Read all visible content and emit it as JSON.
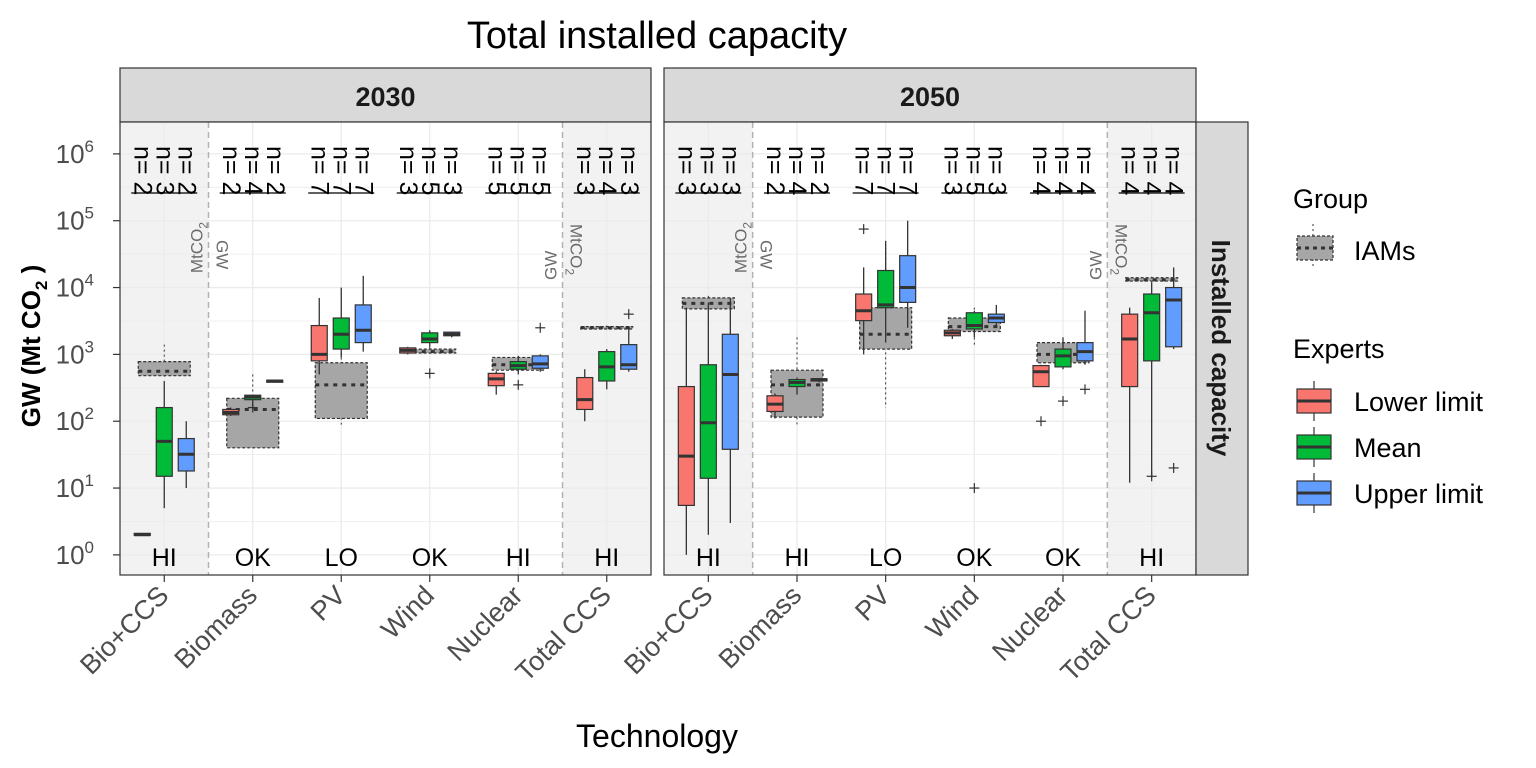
{
  "chart_data": {
    "type": "boxplot",
    "title": "Total installed capacity",
    "xlabel": "Technology",
    "ylabel_main": "GW (Mt CO",
    "ylabel_sub": "2",
    "ylabel_end": " )",
    "y_scale": "log10",
    "ylim": [
      0.5,
      3000000
    ],
    "y_ticks": [
      {
        "value": 1,
        "base": "10",
        "exp": "0"
      },
      {
        "value": 10,
        "base": "10",
        "exp": "1"
      },
      {
        "value": 100,
        "base": "10",
        "exp": "2"
      },
      {
        "value": 1000,
        "base": "10",
        "exp": "3"
      },
      {
        "value": 10000,
        "base": "10",
        "exp": "4"
      },
      {
        "value": 100000,
        "base": "10",
        "exp": "5"
      },
      {
        "value": 1000000,
        "base": "10",
        "exp": "6"
      }
    ],
    "categories": [
      "Bio+CCS",
      "Biomass",
      "PV",
      "Wind",
      "Nuclear",
      "Total CCS"
    ],
    "strip_right": "Installed capacity",
    "colors": {
      "Lower limit": "#f8766d",
      "Mean": "#00ba38",
      "Upper limit": "#619cff",
      "IAMs": "#a6a6a6",
      "shade": "#f2f2f2",
      "strip": "#d9d9d9",
      "grid": "#ebebeb"
    },
    "legend": {
      "group_title": "Group",
      "group_items": [
        "IAMs"
      ],
      "experts_title": "Experts",
      "experts_items": [
        "Lower limit",
        "Mean",
        "Upper limit"
      ]
    },
    "unit_labels": {
      "gw": "GW",
      "mtco2_main": "MtCO",
      "mtco2_sub": "2"
    },
    "panels": [
      {
        "name": "2030",
        "techs": [
          {
            "category": "Bio+CCS",
            "rating": "HI",
            "shaded": true,
            "n": [
              "n= 2",
              "n= 3",
              "n= 2"
            ],
            "iam": {
              "min": 450,
              "q1": 480,
              "median": 560,
              "q3": 780,
              "max": 1400
            },
            "boxes": [
              {
                "series": "Lower limit",
                "min": 2,
                "q1": 2,
                "median": 2,
                "q3": 2.1,
                "max": 2.1,
                "outliers": []
              },
              {
                "series": "Mean",
                "min": 5,
                "q1": 15,
                "median": 50,
                "q3": 160,
                "max": 400,
                "outliers": []
              },
              {
                "series": "Upper limit",
                "min": 10,
                "q1": 18,
                "median": 32,
                "q3": 55,
                "max": 100,
                "outliers": []
              }
            ]
          },
          {
            "category": "Biomass",
            "rating": "OK",
            "shaded": false,
            "n": [
              "n= 2",
              "n= 4",
              "n= 2"
            ],
            "iam": {
              "min": 40,
              "q1": 40,
              "median": 150,
              "q3": 220,
              "max": 500
            },
            "boxes": [
              {
                "series": "Lower limit",
                "min": 120,
                "q1": 125,
                "median": 135,
                "q3": 150,
                "max": 160,
                "outliers": []
              },
              {
                "series": "Mean",
                "min": 150,
                "q1": 210,
                "median": 230,
                "q3": 245,
                "max": 250,
                "outliers": [
                  160
                ]
              },
              {
                "series": "Upper limit",
                "min": 380,
                "q1": 385,
                "median": 400,
                "q3": 410,
                "max": 420,
                "outliers": []
              }
            ]
          },
          {
            "category": "PV",
            "rating": "LO",
            "shaded": false,
            "n": [
              "n= 7",
              "n= 7",
              "n= 7"
            ],
            "iam": {
              "min": 85,
              "q1": 110,
              "median": 350,
              "q3": 750,
              "max": 1500
            },
            "boxes": [
              {
                "series": "Lower limit",
                "min": 500,
                "q1": 800,
                "median": 1000,
                "q3": 2700,
                "max": 7000,
                "outliers": []
              },
              {
                "series": "Mean",
                "min": 900,
                "q1": 1200,
                "median": 2000,
                "q3": 3500,
                "max": 10000,
                "outliers": []
              },
              {
                "series": "Upper limit",
                "min": 1100,
                "q1": 1500,
                "median": 2300,
                "q3": 5500,
                "max": 15000,
                "outliers": []
              }
            ]
          },
          {
            "category": "Wind",
            "rating": "OK",
            "shaded": false,
            "n": [
              "n= 3",
              "n= 5",
              "n= 3"
            ],
            "iam": {
              "min": 1000,
              "q1": 1050,
              "median": 1100,
              "q3": 1200,
              "max": 1300
            },
            "boxes": [
              {
                "series": "Lower limit",
                "min": 1000,
                "q1": 1050,
                "median": 1150,
                "q3": 1250,
                "max": 1300,
                "outliers": []
              },
              {
                "series": "Mean",
                "min": 1300,
                "q1": 1500,
                "median": 1700,
                "q3": 2100,
                "max": 2300,
                "outliers": [
                  520
                ]
              },
              {
                "series": "Upper limit",
                "min": 1800,
                "q1": 1900,
                "median": 2000,
                "q3": 2150,
                "max": 2200,
                "outliers": []
              }
            ]
          },
          {
            "category": "Nuclear",
            "rating": "HI",
            "shaded": false,
            "n": [
              "n= 5",
              "n= 5",
              "n= 5"
            ],
            "iam": {
              "min": 550,
              "q1": 580,
              "median": 700,
              "q3": 900,
              "max": 950
            },
            "boxes": [
              {
                "series": "Lower limit",
                "min": 250,
                "q1": 340,
                "median": 430,
                "q3": 520,
                "max": 560,
                "outliers": []
              },
              {
                "series": "Mean",
                "min": 500,
                "q1": 600,
                "median": 680,
                "q3": 780,
                "max": 950,
                "outliers": [
                  350
                ]
              },
              {
                "series": "Upper limit",
                "min": 550,
                "q1": 620,
                "median": 720,
                "q3": 950,
                "max": 1000,
                "outliers": [
                  2500
                ]
              }
            ]
          },
          {
            "category": "Total CCS",
            "rating": "HI",
            "shaded": true,
            "n": [
              "n= 3",
              "n= 4",
              "n= 3"
            ],
            "iam": {
              "min": 2400,
              "q1": 2400,
              "median": 2500,
              "q3": 2600,
              "max": 2700
            },
            "boxes": [
              {
                "series": "Lower limit",
                "min": 100,
                "q1": 150,
                "median": 210,
                "q3": 450,
                "max": 600,
                "outliers": []
              },
              {
                "series": "Mean",
                "min": 300,
                "q1": 400,
                "median": 650,
                "q3": 1100,
                "max": 1200,
                "outliers": []
              },
              {
                "series": "Upper limit",
                "min": 550,
                "q1": 600,
                "median": 700,
                "q3": 1400,
                "max": 2400,
                "outliers": [
                  4000
                ]
              }
            ]
          }
        ]
      },
      {
        "name": "2050",
        "techs": [
          {
            "category": "Bio+CCS",
            "rating": "HI",
            "shaded": true,
            "n": [
              "n= 3",
              "n= 3",
              "n= 3"
            ],
            "iam": {
              "min": 4500,
              "q1": 4800,
              "median": 5800,
              "q3": 7000,
              "max": 7500
            },
            "boxes": [
              {
                "series": "Lower limit",
                "min": 1,
                "q1": 5.5,
                "median": 30,
                "q3": 330,
                "max": 5000,
                "outliers": []
              },
              {
                "series": "Mean",
                "min": 2,
                "q1": 14,
                "median": 95,
                "q3": 700,
                "max": 6000,
                "outliers": []
              },
              {
                "series": "Upper limit",
                "min": 3,
                "q1": 38,
                "median": 500,
                "q3": 2000,
                "max": 7000,
                "outliers": []
              }
            ]
          },
          {
            "category": "Biomass",
            "rating": "HI",
            "shaded": false,
            "n": [
              "n= 2",
              "n= 4",
              "n= 2"
            ],
            "iam": {
              "min": 85,
              "q1": 115,
              "median": 350,
              "q3": 580,
              "max": 1800
            },
            "boxes": [
              {
                "series": "Lower limit",
                "min": 110,
                "q1": 140,
                "median": 180,
                "q3": 240,
                "max": 260,
                "outliers": []
              },
              {
                "series": "Mean",
                "min": 250,
                "q1": 330,
                "median": 380,
                "q3": 420,
                "max": 450,
                "outliers": []
              },
              {
                "series": "Upper limit",
                "min": 380,
                "q1": 400,
                "median": 420,
                "q3": 430,
                "max": 440,
                "outliers": []
              }
            ]
          },
          {
            "category": "PV",
            "rating": "LO",
            "shaded": false,
            "n": [
              "n= 7",
              "n= 7",
              "n= 7"
            ],
            "iam": {
              "min": 160,
              "q1": 1200,
              "median": 2000,
              "q3": 5000,
              "max": 40000
            },
            "boxes": [
              {
                "series": "Lower limit",
                "min": 1000,
                "q1": 3200,
                "median": 4500,
                "q3": 8000,
                "max": 20000,
                "outliers": [
                  75000
                ]
              },
              {
                "series": "Mean",
                "min": 1500,
                "q1": 5000,
                "median": 5500,
                "q3": 18000,
                "max": 50000,
                "outliers": []
              },
              {
                "series": "Upper limit",
                "min": 2500,
                "q1": 6000,
                "median": 10000,
                "q3": 30000,
                "max": 100000,
                "outliers": []
              }
            ]
          },
          {
            "category": "Wind",
            "rating": "OK",
            "shaded": false,
            "n": [
              "n= 3",
              "n= 5",
              "n= 3"
            ],
            "iam": {
              "min": 1400,
              "q1": 2200,
              "median": 2600,
              "q3": 3500,
              "max": 5000
            },
            "boxes": [
              {
                "series": "Lower limit",
                "min": 1700,
                "q1": 1900,
                "median": 2100,
                "q3": 2300,
                "max": 2400,
                "outliers": []
              },
              {
                "series": "Mean",
                "min": 1800,
                "q1": 2400,
                "median": 2700,
                "q3": 4200,
                "max": 4500,
                "outliers": [
                  10
                ]
              },
              {
                "series": "Upper limit",
                "min": 2500,
                "q1": 3000,
                "median": 3500,
                "q3": 4000,
                "max": 5500,
                "outliers": []
              }
            ]
          },
          {
            "category": "Nuclear",
            "rating": "OK",
            "shaded": false,
            "n": [
              "n= 4",
              "n= 4",
              "n= 4"
            ],
            "iam": {
              "min": 700,
              "q1": 750,
              "median": 1000,
              "q3": 1500,
              "max": 1600
            },
            "boxes": [
              {
                "series": "Lower limit",
                "min": 330,
                "q1": 330,
                "median": 550,
                "q3": 680,
                "max": 700,
                "outliers": [
                  100
                ]
              },
              {
                "series": "Mean",
                "min": 600,
                "q1": 650,
                "median": 950,
                "q3": 1200,
                "max": 1800,
                "outliers": [
                  200
                ]
              },
              {
                "series": "Upper limit",
                "min": 700,
                "q1": 800,
                "median": 1100,
                "q3": 1500,
                "max": 4500,
                "outliers": [
                  300
                ]
              }
            ]
          },
          {
            "category": "Total CCS",
            "rating": "HI",
            "shaded": true,
            "n": [
              "n= 4",
              "n= 4",
              "n= 4"
            ],
            "iam": {
              "min": 12000,
              "q1": 12500,
              "median": 13000,
              "q3": 14000,
              "max": 14500
            },
            "boxes": [
              {
                "series": "Lower limit",
                "min": 12,
                "q1": 330,
                "median": 1700,
                "q3": 4000,
                "max": 5000,
                "outliers": []
              },
              {
                "series": "Mean",
                "min": 14,
                "q1": 800,
                "median": 4200,
                "q3": 8000,
                "max": 12000,
                "outliers": [
                  15
                ]
              },
              {
                "series": "Upper limit",
                "min": 1200,
                "q1": 1300,
                "median": 6500,
                "q3": 10000,
                "max": 20000,
                "outliers": [
                  20
                ]
              }
            ]
          }
        ]
      }
    ]
  }
}
